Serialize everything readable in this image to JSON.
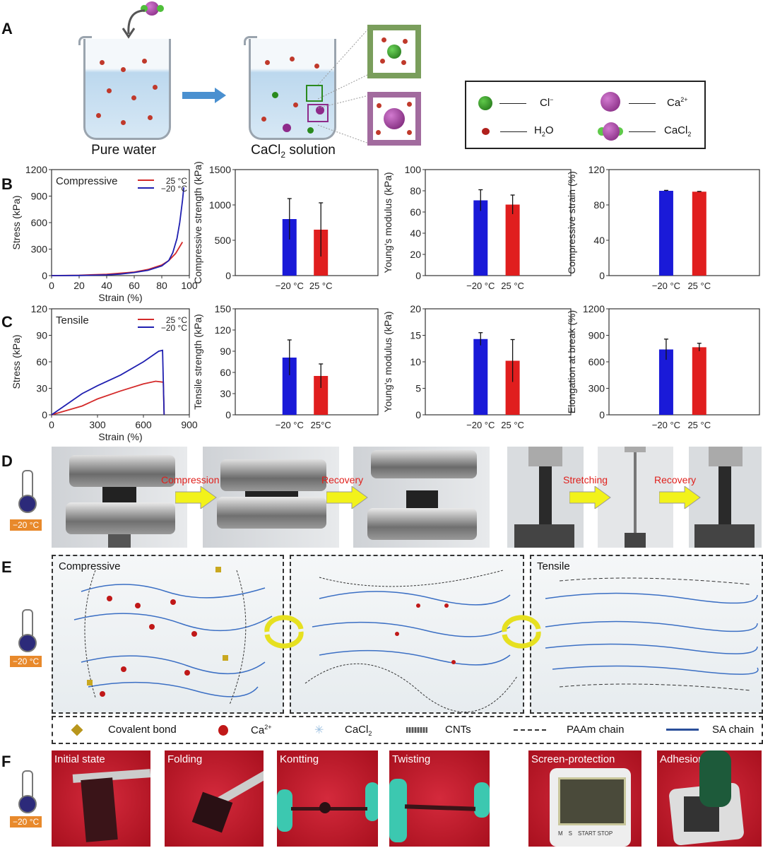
{
  "panels": {
    "A": "A",
    "B": "B",
    "C": "C",
    "D": "D",
    "E": "E",
    "F": "F"
  },
  "panel_a": {
    "beaker1_caption": "Pure water",
    "beaker2_caption": "CaCl",
    "beaker2_caption_sub": "2",
    "beaker2_caption_rest": " solution",
    "legend": [
      {
        "symbol": "green-sphere",
        "label": "Cl",
        "sup": "−"
      },
      {
        "symbol": "purple-sphere",
        "label": "Ca",
        "sup": "2+"
      },
      {
        "symbol": "water-molecule",
        "label": "H",
        "sub": "2",
        "rest": "O"
      },
      {
        "symbol": "cacl2-molecule",
        "label": "CaCl",
        "sub": "2"
      }
    ],
    "colors": {
      "cl": "#2a8a1e",
      "ca": "#8e2a8a",
      "water": "#c0392b",
      "green_box": "#7a9e5c",
      "purple_box": "#a26b9e"
    }
  },
  "panel_d": {
    "labels": [
      "Compression",
      "Recovery",
      "Stretching",
      "Recovery"
    ],
    "temperature": "−20 °C"
  },
  "panel_e": {
    "box_labels": [
      "Compressive",
      "",
      "Tensile"
    ],
    "temperature": "−20 °C",
    "legend": [
      {
        "symbol": "cube",
        "label": "Covalent bond"
      },
      {
        "symbol": "red-sphere",
        "label": "Ca",
        "sup": "2+"
      },
      {
        "symbol": "snowflake",
        "label": "CaCl",
        "sub": "2"
      },
      {
        "symbol": "cnt",
        "label": "CNTs"
      },
      {
        "symbol": "dashed-line",
        "label": "PAAm chain"
      },
      {
        "symbol": "solid-line",
        "label": "SA chain"
      }
    ]
  },
  "panel_f": {
    "labels": [
      "Initial state",
      "Folding",
      "Kontting",
      "Twisting",
      "Screen-protection",
      "Adhesion"
    ],
    "temperature": "−20 °C",
    "device_buttons": [
      "M",
      "S",
      "START STOP"
    ]
  },
  "chart_data": [
    {
      "id": "b1",
      "type": "line",
      "panel": "B",
      "annotation": "Compressive",
      "xlabel": "Strain (%)",
      "ylabel": "Stress (kPa)",
      "xlim": [
        0,
        100
      ],
      "ylim": [
        0,
        1200
      ],
      "xticks": [
        0,
        20,
        40,
        60,
        80,
        100
      ],
      "yticks": [
        0,
        300,
        600,
        900,
        1200
      ],
      "series": [
        {
          "name": "25 °C",
          "color": "#d42a2a",
          "x": [
            0,
            20,
            40,
            60,
            70,
            80,
            85,
            90,
            95
          ],
          "y": [
            0,
            4,
            15,
            40,
            70,
            120,
            170,
            250,
            380
          ]
        },
        {
          "name": "−20 °C",
          "color": "#1f1fb0",
          "x": [
            0,
            20,
            40,
            50,
            60,
            70,
            80,
            85,
            88,
            91,
            93,
            95,
            96
          ],
          "y": [
            0,
            2,
            8,
            18,
            35,
            60,
            110,
            170,
            260,
            420,
            600,
            850,
            1000
          ]
        }
      ]
    },
    {
      "id": "b2",
      "type": "bar",
      "panel": "B",
      "ylabel": "Compressive strength (kPa)",
      "ylim": [
        0,
        1500
      ],
      "yticks": [
        0,
        500,
        1000,
        1500
      ],
      "categories": [
        "−20 °C",
        "25 °C"
      ],
      "values": [
        800,
        650
      ],
      "errors": [
        290,
        380
      ],
      "colors": [
        "#1a1ad8",
        "#e01e1e"
      ]
    },
    {
      "id": "b3",
      "type": "bar",
      "panel": "B",
      "ylabel": "Young's modulus (kPa)",
      "ylim": [
        0,
        100
      ],
      "yticks": [
        0,
        20,
        40,
        60,
        80,
        100
      ],
      "categories": [
        "−20 °C",
        "25 °C"
      ],
      "values": [
        71,
        67
      ],
      "errors": [
        10,
        9
      ],
      "colors": [
        "#1a1ad8",
        "#e01e1e"
      ]
    },
    {
      "id": "b4",
      "type": "bar",
      "panel": "B",
      "ylabel": "Compressive strain (%)",
      "ylim": [
        0,
        120
      ],
      "yticks": [
        0,
        40,
        80,
        120
      ],
      "categories": [
        "−20 °C",
        "25 °C"
      ],
      "values": [
        96,
        95
      ],
      "errors": [
        0.5,
        0.3
      ],
      "colors": [
        "#1a1ad8",
        "#e01e1e"
      ]
    },
    {
      "id": "c1",
      "type": "line",
      "panel": "C",
      "annotation": "Tensile",
      "xlabel": "Strain (%)",
      "ylabel": "Stress (kPa)",
      "xlim": [
        0,
        900
      ],
      "ylim": [
        0,
        120
      ],
      "xticks": [
        0,
        300,
        600,
        900
      ],
      "yticks": [
        0,
        30,
        60,
        90,
        120
      ],
      "series": [
        {
          "name": "25 °C",
          "color": "#d42a2a",
          "x": [
            0,
            100,
            200,
            300,
            450,
            600,
            680,
            730,
            735
          ],
          "y": [
            0,
            5,
            10,
            18,
            27,
            35,
            38,
            37,
            0
          ]
        },
        {
          "name": "−20 °C",
          "color": "#1f1fb0",
          "x": [
            0,
            100,
            200,
            300,
            450,
            600,
            700,
            725,
            735
          ],
          "y": [
            0,
            12,
            24,
            33,
            45,
            60,
            72,
            73,
            0
          ]
        }
      ]
    },
    {
      "id": "c2",
      "type": "bar",
      "panel": "C",
      "ylabel": "Tensile strength (kPa)",
      "ylim": [
        0,
        150
      ],
      "yticks": [
        0,
        30,
        60,
        90,
        120,
        150
      ],
      "categories": [
        "−20 °C",
        "25°C"
      ],
      "values": [
        81,
        55
      ],
      "errors": [
        25,
        17
      ],
      "colors": [
        "#1a1ad8",
        "#e01e1e"
      ]
    },
    {
      "id": "c3",
      "type": "bar",
      "panel": "C",
      "ylabel": "Young's modulus (kPa)",
      "ylim": [
        0,
        20
      ],
      "yticks": [
        0,
        5,
        10,
        15,
        20
      ],
      "categories": [
        "−20 °C",
        "25 °C"
      ],
      "values": [
        14.3,
        10.2
      ],
      "errors": [
        1.2,
        4
      ],
      "colors": [
        "#1a1ad8",
        "#e01e1e"
      ]
    },
    {
      "id": "c4",
      "type": "bar",
      "panel": "C",
      "ylabel": "Elongation at break (%)",
      "ylim": [
        0,
        1200
      ],
      "yticks": [
        0,
        300,
        600,
        900,
        1200
      ],
      "categories": [
        "−20 °C",
        "25 °C"
      ],
      "values": [
        740,
        765
      ],
      "errors": [
        117,
        45
      ],
      "colors": [
        "#1a1ad8",
        "#e01e1e"
      ]
    }
  ]
}
